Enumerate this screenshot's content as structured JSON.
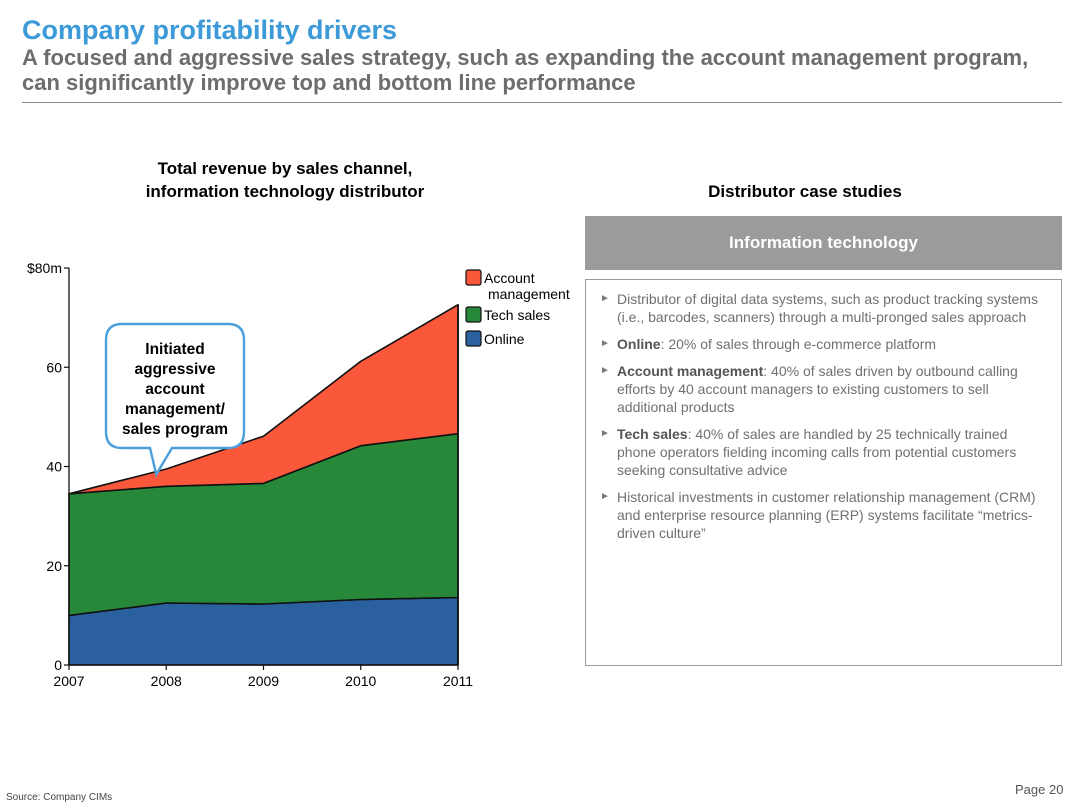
{
  "header": {
    "title": "Company profitability drivers",
    "subtitle": "A focused and aggressive sales strategy, such as expanding the account management program, can significantly improve top and bottom line performance"
  },
  "chart_title_lines": [
    "Total revenue by sales channel,",
    "information technology distributor"
  ],
  "chart_data": {
    "type": "area",
    "stacked": true,
    "x": [
      "2007",
      "2008",
      "2009",
      "2010",
      "2011"
    ],
    "series": [
      {
        "name": "Online",
        "values": [
          10,
          12.5,
          12.3,
          13.2,
          13.6
        ],
        "color": "#2b609e"
      },
      {
        "name": "Tech sales",
        "values": [
          24.5,
          23.5,
          24.3,
          31.0,
          33.0
        ],
        "color": "#27883a"
      },
      {
        "name": "Account management",
        "values": [
          0,
          3.5,
          9.5,
          17.0,
          26.0
        ],
        "color": "#fb573b"
      }
    ],
    "legend_labels": [
      {
        "series": "Account management",
        "lines": [
          "Account",
          "management"
        ]
      },
      {
        "series": "Tech sales",
        "lines": [
          "Tech sales"
        ]
      },
      {
        "series": "Online",
        "lines": [
          "Online"
        ]
      }
    ],
    "ylim": [
      0,
      80
    ],
    "yticks": [
      {
        "value": 0,
        "label": "0"
      },
      {
        "value": 20,
        "label": "20"
      },
      {
        "value": 40,
        "label": "40"
      },
      {
        "value": 60,
        "label": "60"
      },
      {
        "value": 80,
        "label": "$80m"
      }
    ],
    "legend_position": "right",
    "grid": false,
    "callout": {
      "lines": [
        "Initiated",
        "aggressive",
        "account",
        "management/",
        "sales program"
      ],
      "points_to": {
        "x": "2008",
        "value": 38
      },
      "border_color": "#4a9fdc"
    }
  },
  "case_studies": {
    "title": "Distributor case studies",
    "header": "Information technology",
    "bullet_glyph": "►",
    "items": [
      {
        "lead": "",
        "text": "Distributor of digital data systems, such as product tracking systems (i.e., barcodes, scanners) through a multi-pronged sales approach"
      },
      {
        "lead": "Online",
        "text": ": 20% of sales through e-commerce platform"
      },
      {
        "lead": "Account management",
        "text": ": 40% of sales driven by outbound calling efforts by 40 account managers to existing customers to sell additional products"
      },
      {
        "lead": "Tech sales",
        "text": ": 40% of sales are handled by 25 technically trained phone operators fielding incoming calls from potential customers seeking consultative advice"
      },
      {
        "lead": "",
        "text": "Historical investments in customer relationship management (CRM) and enterprise resource planning (ERP) systems facilitate “metrics-driven culture”"
      }
    ]
  },
  "footer": {
    "source": "Source: Company CIMs",
    "page": "Page 20"
  }
}
